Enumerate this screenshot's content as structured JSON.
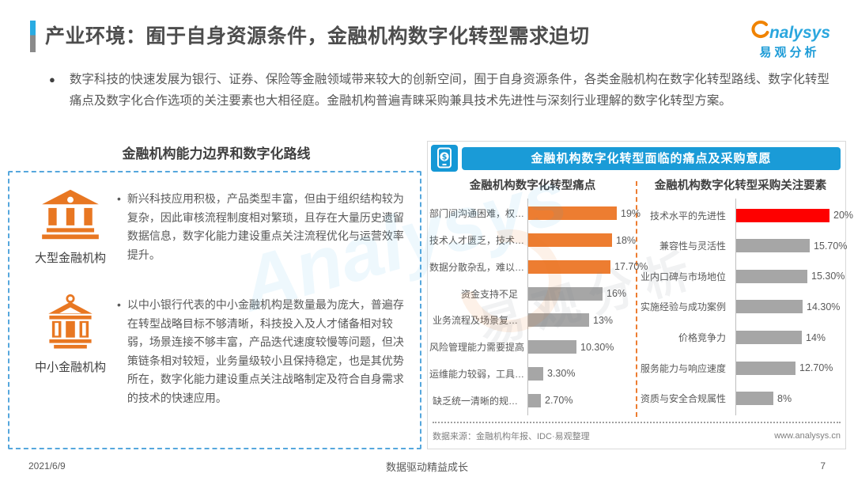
{
  "page": {
    "title": "产业环境：囿于自身资源条件，金融机构数字化转型需求迫切",
    "logo": {
      "brand_en": "nalysys",
      "brand_cn": "易观分析"
    },
    "intro_bullet": "●",
    "intro": "数字科技的快速发展为银行、证券、保险等金融领域带来较大的创新空间，囿于自身资源条件，各类金融机构在数字化转型路线、数字化转型痛点及数字化合作选项的关注要素也大相径庭。金融机构普遍青睐采购兼具技术先进性与深刻行业理解的数字化转型方案。",
    "footer": {
      "date": "2021/6/9",
      "slogan": "数据驱动精益成长",
      "page_number": "7"
    }
  },
  "left_panel": {
    "title": "金融机构能力边界和数字化路线",
    "items": [
      {
        "icon": "bank-icon",
        "label": "大型金融机构",
        "bullet": "•",
        "text": "新兴科技应用积极，产品类型丰富，但由于组织结构较为复杂，因此审核流程制度相对繁琐，且存在大量历史遗留数据信息，数字化能力建设重点关注流程优化与运营效率提升。"
      },
      {
        "icon": "bank-icon",
        "label": "中小金融机构",
        "bullet": "•",
        "text": "以中小银行代表的中小金融机构是数量最为庞大，普遍存在转型战略目标不够清晰，科技投入及人才储备相对较弱，场景连接不够丰富，产品迭代速度较慢等问题，但决策链条相对较短，业务量级较小且保持稳定，也是其优势所在，数字化能力建设重点关注战略制定及符合自身需求的技术的快速应用。"
      }
    ]
  },
  "right_panel": {
    "header": "金融机构数字化转型面临的痛点及采购意愿",
    "source": "数据来源：金融机构年报、IDC·易观整理",
    "website": "www.analysys.cn"
  },
  "chart_data": [
    {
      "type": "bar",
      "orientation": "horizontal",
      "title": "金融机构数字化转型痛点",
      "xlim": [
        0,
        20
      ],
      "grid": false,
      "bars": [
        {
          "label": "部门间沟通困难，权…",
          "value": 19,
          "display": "19%",
          "color": "#ed7d31"
        },
        {
          "label": "技术人才匮乏，技术…",
          "value": 18,
          "display": "18%",
          "color": "#ed7d31"
        },
        {
          "label": "数据分散杂乱，难以…",
          "value": 17.7,
          "display": "17.70%",
          "color": "#ed7d31"
        },
        {
          "label": "资金支持不足",
          "value": 16,
          "display": "16%",
          "color": "#a6a6a6"
        },
        {
          "label": "业务流程及场景复…",
          "value": 13,
          "display": "13%",
          "color": "#a6a6a6"
        },
        {
          "label": "风险管理能力需要提高",
          "value": 10.3,
          "display": "10.30%",
          "color": "#a6a6a6"
        },
        {
          "label": "运维能力较弱，工具…",
          "value": 3.3,
          "display": "3.30%",
          "color": "#a6a6a6"
        },
        {
          "label": "缺乏统一清晰的规…",
          "value": 2.7,
          "display": "2.70%",
          "color": "#a6a6a6"
        }
      ]
    },
    {
      "type": "bar",
      "orientation": "horizontal",
      "title": "金融机构数字化转型采购关注要素",
      "xlim": [
        0,
        20
      ],
      "grid": false,
      "bars": [
        {
          "label": "技术水平的先进性",
          "value": 20,
          "display": "20%",
          "color": "#fe0000"
        },
        {
          "label": "兼容性与灵活性",
          "value": 15.7,
          "display": "15.70%",
          "color": "#a6a6a6"
        },
        {
          "label": "业内口碑与市场地位",
          "value": 15.3,
          "display": "15.30%",
          "color": "#a6a6a6"
        },
        {
          "label": "实施经验与成功案例",
          "value": 14.3,
          "display": "14.30%",
          "color": "#a6a6a6"
        },
        {
          "label": "价格竞争力",
          "value": 14,
          "display": "14%",
          "color": "#a6a6a6"
        },
        {
          "label": "服务能力与响应速度",
          "value": 12.7,
          "display": "12.70%",
          "color": "#a6a6a6"
        },
        {
          "label": "资质与安全合规属性",
          "value": 8,
          "display": "8%",
          "color": "#a6a6a6"
        }
      ]
    }
  ],
  "colors": {
    "accent_blue": "#1a9bd7",
    "bar_orange": "#ed7d31",
    "bar_red": "#fe0000",
    "bar_gray": "#a6a6a6",
    "icon_orange": "#e87722",
    "dashed_border_blue": "#56a7dd"
  }
}
